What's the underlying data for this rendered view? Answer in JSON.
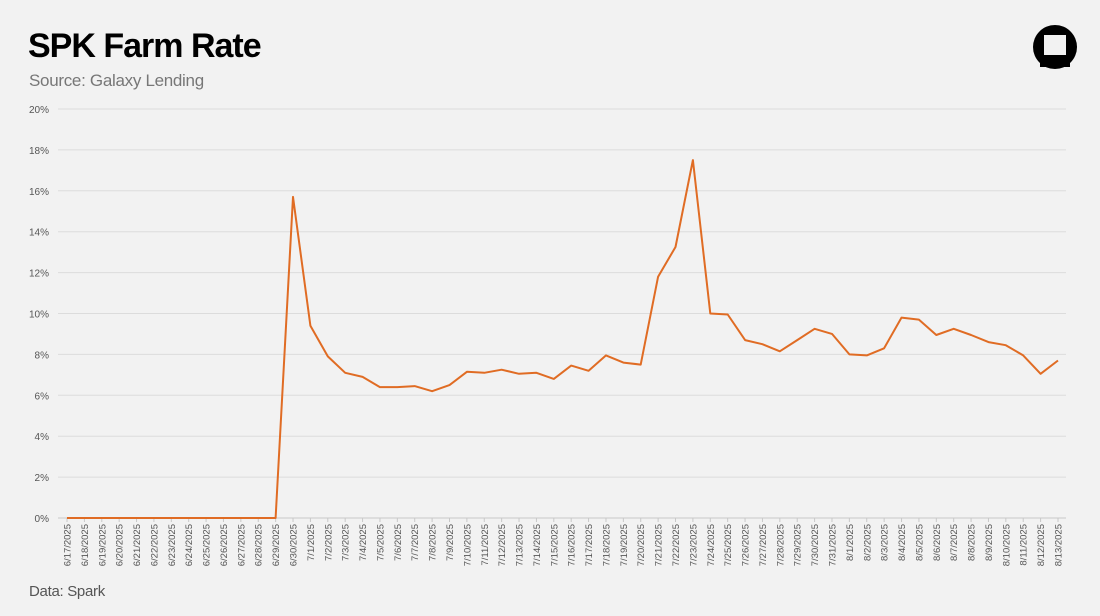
{
  "header": {
    "title": "SPK Farm Rate",
    "subtitle": "Source: Galaxy Lending"
  },
  "footer": {
    "source": "Data: Spark"
  },
  "logo": {
    "icon": "galaxy-logo-icon"
  },
  "chart_data": {
    "type": "line",
    "title": "SPK Farm Rate",
    "xlabel": "",
    "ylabel": "",
    "ylim": [
      0,
      20
    ],
    "y_ticks": [
      "0%",
      "2%",
      "4%",
      "6%",
      "8%",
      "10%",
      "12%",
      "14%",
      "16%",
      "18%",
      "20%"
    ],
    "grid": true,
    "legend": "none",
    "colors": {
      "line": "#e06c24",
      "grid": "#dcdcdc",
      "tick_text": "#555555"
    },
    "x": [
      "6/17/2025",
      "6/18/2025",
      "6/19/2025",
      "6/20/2025",
      "6/21/2025",
      "6/22/2025",
      "6/23/2025",
      "6/24/2025",
      "6/25/2025",
      "6/26/2025",
      "6/27/2025",
      "6/28/2025",
      "6/29/2025",
      "6/30/2025",
      "7/1/2025",
      "7/2/2025",
      "7/3/2025",
      "7/4/2025",
      "7/5/2025",
      "7/6/2025",
      "7/7/2025",
      "7/8/2025",
      "7/9/2025",
      "7/10/2025",
      "7/11/2025",
      "7/12/2025",
      "7/13/2025",
      "7/14/2025",
      "7/15/2025",
      "7/16/2025",
      "7/17/2025",
      "7/18/2025",
      "7/19/2025",
      "7/20/2025",
      "7/21/2025",
      "7/22/2025",
      "7/23/2025",
      "7/24/2025",
      "7/25/2025",
      "7/26/2025",
      "7/27/2025",
      "7/28/2025",
      "7/29/2025",
      "7/30/2025",
      "7/31/2025",
      "8/1/2025",
      "8/2/2025",
      "8/3/2025",
      "8/4/2025",
      "8/5/2025",
      "8/6/2025",
      "8/7/2025",
      "8/8/2025",
      "8/9/2025",
      "8/10/2025",
      "8/11/2025",
      "8/12/2025",
      "8/13/2025"
    ],
    "series": [
      {
        "values": [
          0,
          0,
          0,
          0,
          0,
          0,
          0,
          0,
          0,
          0,
          0,
          0,
          0,
          15.7,
          9.4,
          7.9,
          7.1,
          6.9,
          6.4,
          6.4,
          6.45,
          6.2,
          6.5,
          7.15,
          7.1,
          7.25,
          7.05,
          7.1,
          6.8,
          7.45,
          7.2,
          7.95,
          7.6,
          7.5,
          11.8,
          13.25,
          17.5,
          10.0,
          9.95,
          8.7,
          8.5,
          8.15,
          8.7,
          9.25,
          9.0,
          8.0,
          7.95,
          8.3,
          9.8,
          9.7,
          8.95,
          9.25,
          8.95,
          8.6,
          8.45,
          7.95,
          7.05,
          7.7
        ]
      }
    ]
  }
}
